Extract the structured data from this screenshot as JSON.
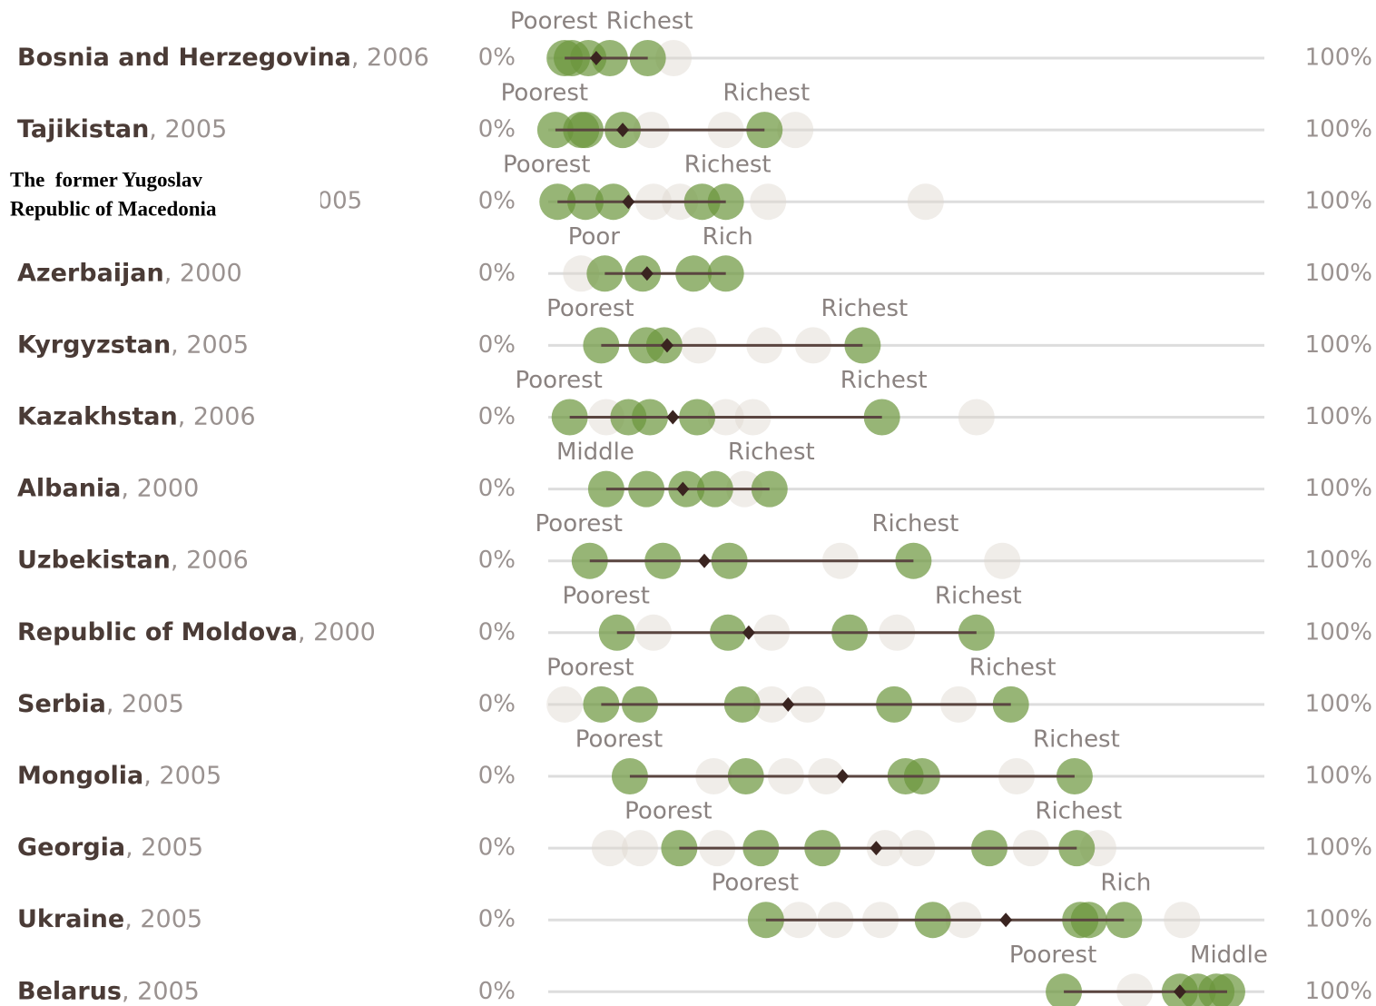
{
  "chart_data": {
    "type": "dotplot",
    "xlim": [
      0,
      100
    ],
    "xticks": [
      {
        "value": 0,
        "label": "0%"
      },
      {
        "value": 100,
        "label": "100%"
      }
    ],
    "green_color": "#6b963c",
    "grey_color": "#ddd8cf",
    "mean_color": "#3a2420",
    "rows": [
      {
        "country": "Bosnia and Herzegovina",
        "year": ", 2006",
        "green": [
          2.3,
          3.3,
          5.6,
          8.6,
          13.9
        ],
        "grey": [
          17.5
        ],
        "mean": 6.7,
        "low_label": "Poorest",
        "high_label": "Richest"
      },
      {
        "country": "Tajikistan",
        "year": ", 2005",
        "green": [
          1.0,
          4.6,
          5.2,
          10.4,
          30.2
        ],
        "grey": [
          14.4,
          24.8,
          34.5
        ],
        "mean": 10.4,
        "low_label": "Poorest",
        "high_label": "Richest"
      },
      {
        "country": [
          "The  former Yugoslav",
          "Republic of Macedonia"
        ],
        "year": "2005",
        "green": [
          1.3,
          5.2,
          9.1,
          21.5,
          24.8
        ],
        "grey": [
          14.7,
          18.4,
          30.7,
          52.7
        ],
        "mean": 11.2,
        "low_label": "Poorest",
        "high_label": "Richest"
      },
      {
        "country": "Azerbaijan",
        "year": ", 2000",
        "green": [
          7.9,
          13.2,
          20.3,
          24.8
        ],
        "grey": [
          4.6
        ],
        "mean": 13.8,
        "low_label": "Poor",
        "high_label": "Rich"
      },
      {
        "country": "Kyrgyzstan",
        "year": ", 2005",
        "green": [
          7.4,
          13.7,
          16.2,
          43.9
        ],
        "grey": [
          21.0,
          30.2,
          37.0
        ],
        "mean": 16.6,
        "low_label": "Poorest",
        "high_label": "Richest"
      },
      {
        "country": "Kazakhstan",
        "year": ", 2006",
        "green": [
          3.0,
          11.2,
          14.2,
          20.8,
          46.6
        ],
        "grey": [
          8.1,
          24.8,
          28.6,
          59.8
        ],
        "mean": 17.4,
        "low_label": "Poorest",
        "high_label": "Richest"
      },
      {
        "country": "Albania",
        "year": ", 2000",
        "green": [
          8.1,
          13.7,
          19.3,
          23.3,
          30.9
        ],
        "grey": [
          27.4
        ],
        "mean": 18.8,
        "low_label": "Middle",
        "high_label": "Richest"
      },
      {
        "country": "Uzbekistan",
        "year": ", 2006",
        "green": [
          5.8,
          16.0,
          25.3,
          51.0
        ],
        "grey": [
          40.8,
          63.4
        ],
        "mean": 21.8,
        "low_label": "Poorest",
        "high_label": "Richest"
      },
      {
        "country": "Republic of Moldova",
        "year": ", 2000",
        "green": [
          9.6,
          25.1,
          42.1,
          59.8
        ],
        "grey": [
          14.7,
          31.2,
          48.7
        ],
        "mean": 28.0,
        "low_label": "Poorest",
        "high_label": "Richest"
      },
      {
        "country": "Serbia",
        "year": ", 2005",
        "green": [
          7.4,
          12.8,
          27.1,
          48.3,
          64.6
        ],
        "grey": [
          2.3,
          31.2,
          36.2,
          57.3
        ],
        "mean": 33.5,
        "low_label": "Poorest",
        "high_label": "Richest"
      },
      {
        "country": "Mongolia",
        "year": ", 2005",
        "green": [
          11.4,
          27.6,
          49.9,
          52.2,
          73.5
        ],
        "grey": [
          23.1,
          33.2,
          38.8,
          65.4
        ],
        "mean": 41.1,
        "low_label": "Poorest",
        "high_label": "Richest"
      },
      {
        "country": "Georgia",
        "year": ", 2005",
        "green": [
          18.3,
          29.7,
          38.3,
          61.6,
          73.8
        ],
        "grey": [
          8.6,
          12.8,
          23.6,
          47.0,
          51.5,
          67.4,
          76.8
        ],
        "mean": 45.8,
        "low_label": "Poorest",
        "high_label": "Richest"
      },
      {
        "country": "Ukraine",
        "year": ", 2005",
        "green": [
          30.4,
          53.7,
          74.3,
          75.5,
          80.4
        ],
        "grey": [
          35.0,
          40.1,
          46.4,
          58.0,
          88.5
        ],
        "mean": 63.9,
        "low_label": "Poorest",
        "high_label": "Rich"
      },
      {
        "country": "Belarus",
        "year": ", 2005",
        "green": [
          72.0,
          88.2,
          90.7,
          93.3,
          94.8
        ],
        "grey": [
          81.9
        ],
        "mean": 88.2,
        "low_label": "Poorest",
        "high_label": "Middle"
      }
    ]
  }
}
